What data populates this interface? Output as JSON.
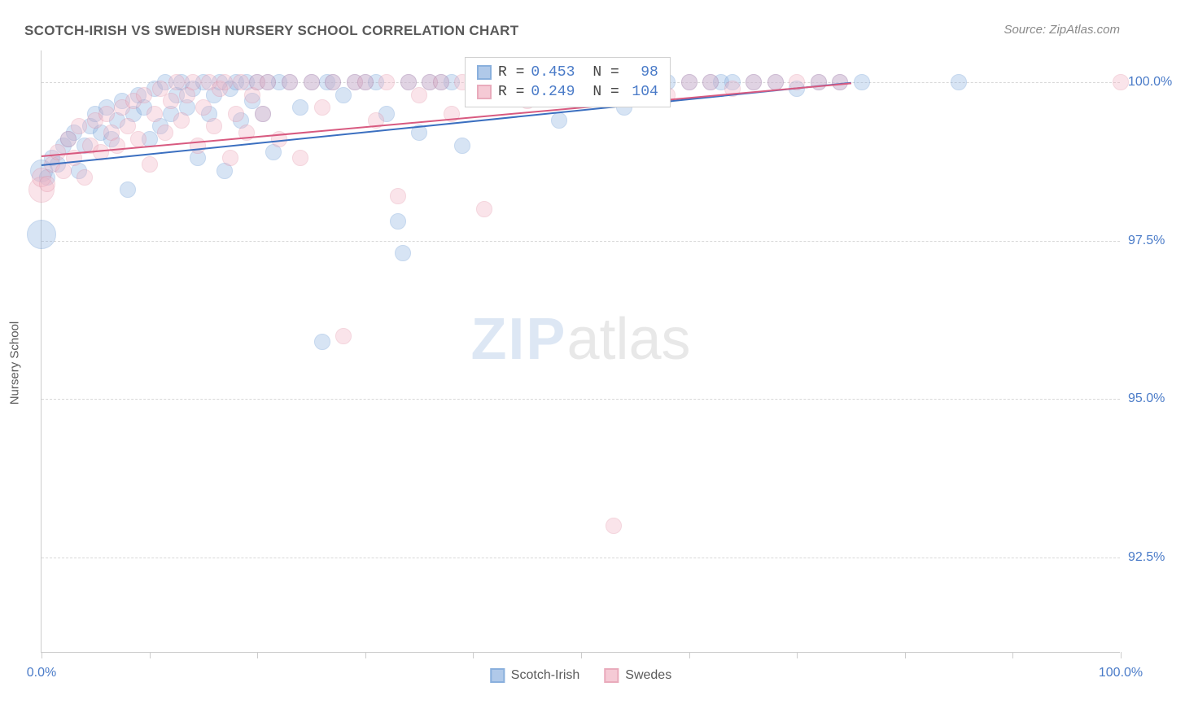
{
  "title": "SCOTCH-IRISH VS SWEDISH NURSERY SCHOOL CORRELATION CHART",
  "source": "Source: ZipAtlas.com",
  "watermark_a": "ZIP",
  "watermark_b": "atlas",
  "ylabel": "Nursery School",
  "chart": {
    "type": "scatter",
    "xlim": [
      0,
      100
    ],
    "ylim": [
      91.0,
      100.5
    ],
    "xtick_positions": [
      0,
      10,
      20,
      30,
      40,
      50,
      60,
      70,
      80,
      90,
      100
    ],
    "xtick_labels": {
      "0": "0.0%",
      "100": "100.0%"
    },
    "ytick_positions": [
      92.5,
      95.0,
      97.5,
      100.0
    ],
    "ytick_labels": [
      "92.5%",
      "95.0%",
      "97.5%",
      "100.0%"
    ],
    "background_color": "#ffffff",
    "grid_color": "#d8d8d8",
    "axis_color": "#cccccc",
    "tick_label_color": "#4a7bc8",
    "marker_opacity": 0.35,
    "marker_radius": 10,
    "series": [
      {
        "name": "Scotch-Irish",
        "fill_color": "#8fb3e0",
        "stroke_color": "#5a8fd0",
        "r_value": "0.453",
        "n_value": "98",
        "trend": {
          "x1": 0,
          "y1": 98.7,
          "x2": 75,
          "y2": 100.0,
          "color": "#3b6fc0",
          "width": 2
        },
        "points": [
          [
            0,
            97.6,
            18
          ],
          [
            0,
            98.6,
            14
          ],
          [
            0.5,
            98.5,
            10
          ],
          [
            1,
            98.8,
            10
          ],
          [
            1.5,
            98.7,
            10
          ],
          [
            2,
            99.0,
            10
          ],
          [
            2.5,
            99.1,
            10
          ],
          [
            3,
            99.2,
            10
          ],
          [
            3.5,
            98.6,
            10
          ],
          [
            4,
            99.0,
            10
          ],
          [
            4.5,
            99.3,
            10
          ],
          [
            5,
            99.5,
            10
          ],
          [
            5.5,
            99.2,
            10
          ],
          [
            6,
            99.6,
            10
          ],
          [
            6.5,
            99.1,
            10
          ],
          [
            7,
            99.4,
            10
          ],
          [
            7.5,
            99.7,
            10
          ],
          [
            8,
            98.3,
            10
          ],
          [
            8.5,
            99.5,
            10
          ],
          [
            9,
            99.8,
            10
          ],
          [
            9.5,
            99.6,
            10
          ],
          [
            10,
            99.1,
            10
          ],
          [
            10.5,
            99.9,
            10
          ],
          [
            11,
            99.3,
            10
          ],
          [
            11.5,
            100,
            10
          ],
          [
            12,
            99.5,
            10
          ],
          [
            12.5,
            99.8,
            10
          ],
          [
            13,
            100,
            10
          ],
          [
            13.5,
            99.6,
            10
          ],
          [
            14,
            99.9,
            10
          ],
          [
            14.5,
            98.8,
            10
          ],
          [
            15,
            100,
            10
          ],
          [
            15.5,
            99.5,
            10
          ],
          [
            16,
            99.8,
            10
          ],
          [
            16.5,
            100,
            10
          ],
          [
            17,
            98.6,
            10
          ],
          [
            17.5,
            99.9,
            10
          ],
          [
            18,
            100,
            10
          ],
          [
            18.5,
            99.4,
            10
          ],
          [
            19,
            100,
            10
          ],
          [
            19.5,
            99.7,
            10
          ],
          [
            20,
            100,
            10
          ],
          [
            20.5,
            99.5,
            10
          ],
          [
            21,
            100,
            10
          ],
          [
            21.5,
            98.9,
            10
          ],
          [
            22,
            100,
            10
          ],
          [
            23,
            100,
            10
          ],
          [
            24,
            99.6,
            10
          ],
          [
            25,
            100,
            10
          ],
          [
            26,
            95.9,
            10
          ],
          [
            26.5,
            100,
            10
          ],
          [
            27,
            100,
            10
          ],
          [
            28,
            99.8,
            10
          ],
          [
            29,
            100,
            10
          ],
          [
            30,
            100,
            10
          ],
          [
            31,
            100,
            10
          ],
          [
            32,
            99.5,
            10
          ],
          [
            33,
            97.8,
            10
          ],
          [
            33.5,
            97.3,
            10
          ],
          [
            34,
            100,
            10
          ],
          [
            35,
            99.2,
            10
          ],
          [
            36,
            100,
            10
          ],
          [
            37,
            100,
            10
          ],
          [
            38,
            100,
            10
          ],
          [
            39,
            99.0,
            10
          ],
          [
            40,
            100,
            10
          ],
          [
            42,
            100,
            10
          ],
          [
            44,
            100,
            10
          ],
          [
            46,
            100,
            10
          ],
          [
            48,
            99.4,
            10
          ],
          [
            50,
            100,
            10
          ],
          [
            52,
            100,
            10
          ],
          [
            54,
            99.6,
            10
          ],
          [
            56,
            100,
            10
          ],
          [
            58,
            100,
            10
          ],
          [
            60,
            100,
            10
          ],
          [
            62,
            100,
            10
          ],
          [
            63,
            100,
            10
          ],
          [
            64,
            100,
            10
          ],
          [
            66,
            100,
            10
          ],
          [
            68,
            100,
            10
          ],
          [
            70,
            99.9,
            10
          ],
          [
            72,
            100,
            10
          ],
          [
            74,
            100,
            10
          ],
          [
            76,
            100,
            10
          ],
          [
            85,
            100,
            10
          ]
        ]
      },
      {
        "name": "Swedes",
        "fill_color": "#f2b5c4",
        "stroke_color": "#e088a0",
        "r_value": "0.249",
        "n_value": "104",
        "trend": {
          "x1": 0,
          "y1": 98.85,
          "x2": 75,
          "y2": 100.0,
          "color": "#d85a80",
          "width": 2
        },
        "points": [
          [
            0,
            98.3,
            16
          ],
          [
            0,
            98.5,
            12
          ],
          [
            0.5,
            98.4,
            10
          ],
          [
            1,
            98.7,
            10
          ],
          [
            1.5,
            98.9,
            10
          ],
          [
            2,
            98.6,
            10
          ],
          [
            2.5,
            99.1,
            10
          ],
          [
            3,
            98.8,
            10
          ],
          [
            3.5,
            99.3,
            10
          ],
          [
            4,
            98.5,
            10
          ],
          [
            4.5,
            99.0,
            10
          ],
          [
            5,
            99.4,
            10
          ],
          [
            5.5,
            98.9,
            10
          ],
          [
            6,
            99.5,
            10
          ],
          [
            6.5,
            99.2,
            10
          ],
          [
            7,
            99.0,
            10
          ],
          [
            7.5,
            99.6,
            10
          ],
          [
            8,
            99.3,
            10
          ],
          [
            8.5,
            99.7,
            10
          ],
          [
            9,
            99.1,
            10
          ],
          [
            9.5,
            99.8,
            10
          ],
          [
            10,
            98.7,
            10
          ],
          [
            10.5,
            99.5,
            10
          ],
          [
            11,
            99.9,
            10
          ],
          [
            11.5,
            99.2,
            10
          ],
          [
            12,
            99.7,
            10
          ],
          [
            12.5,
            100,
            10
          ],
          [
            13,
            99.4,
            10
          ],
          [
            13.5,
            99.8,
            10
          ],
          [
            14,
            100,
            10
          ],
          [
            14.5,
            99.0,
            10
          ],
          [
            15,
            99.6,
            10
          ],
          [
            15.5,
            100,
            10
          ],
          [
            16,
            99.3,
            10
          ],
          [
            16.5,
            99.9,
            10
          ],
          [
            17,
            100,
            10
          ],
          [
            17.5,
            98.8,
            10
          ],
          [
            18,
            99.5,
            10
          ],
          [
            18.5,
            100,
            10
          ],
          [
            19,
            99.2,
            10
          ],
          [
            19.5,
            99.8,
            10
          ],
          [
            20,
            100,
            10
          ],
          [
            20.5,
            99.5,
            10
          ],
          [
            21,
            100,
            10
          ],
          [
            22,
            99.1,
            10
          ],
          [
            23,
            100,
            10
          ],
          [
            24,
            98.8,
            10
          ],
          [
            25,
            100,
            10
          ],
          [
            26,
            99.6,
            10
          ],
          [
            27,
            100,
            10
          ],
          [
            28,
            96.0,
            10
          ],
          [
            29,
            100,
            10
          ],
          [
            30,
            100,
            10
          ],
          [
            31,
            99.4,
            10
          ],
          [
            32,
            100,
            10
          ],
          [
            33,
            98.2,
            10
          ],
          [
            34,
            100,
            10
          ],
          [
            35,
            99.8,
            10
          ],
          [
            36,
            100,
            10
          ],
          [
            37,
            100,
            10
          ],
          [
            38,
            99.5,
            10
          ],
          [
            39,
            100,
            10
          ],
          [
            40,
            100,
            10
          ],
          [
            41,
            98.0,
            10
          ],
          [
            42,
            100,
            10
          ],
          [
            43,
            100,
            10
          ],
          [
            44,
            100,
            10
          ],
          [
            45,
            99.7,
            10
          ],
          [
            46,
            100,
            10
          ],
          [
            48,
            100,
            10
          ],
          [
            50,
            100,
            10
          ],
          [
            52,
            100,
            10
          ],
          [
            53,
            93.0,
            10
          ],
          [
            54,
            100,
            10
          ],
          [
            56,
            100,
            10
          ],
          [
            58,
            99.8,
            10
          ],
          [
            60,
            100,
            10
          ],
          [
            62,
            100,
            10
          ],
          [
            64,
            99.9,
            10
          ],
          [
            66,
            100,
            10
          ],
          [
            68,
            100,
            10
          ],
          [
            70,
            100,
            10
          ],
          [
            72,
            100,
            10
          ],
          [
            74,
            100,
            10
          ],
          [
            100,
            100,
            10
          ]
        ]
      }
    ]
  },
  "legend": {
    "r_label": "R =",
    "n_label": "N ="
  },
  "bottom_legend": {
    "items": [
      {
        "label": "Scotch-Irish",
        "fill": "#8fb3e0",
        "stroke": "#5a8fd0"
      },
      {
        "label": "Swedes",
        "fill": "#f2b5c4",
        "stroke": "#e088a0"
      }
    ]
  }
}
